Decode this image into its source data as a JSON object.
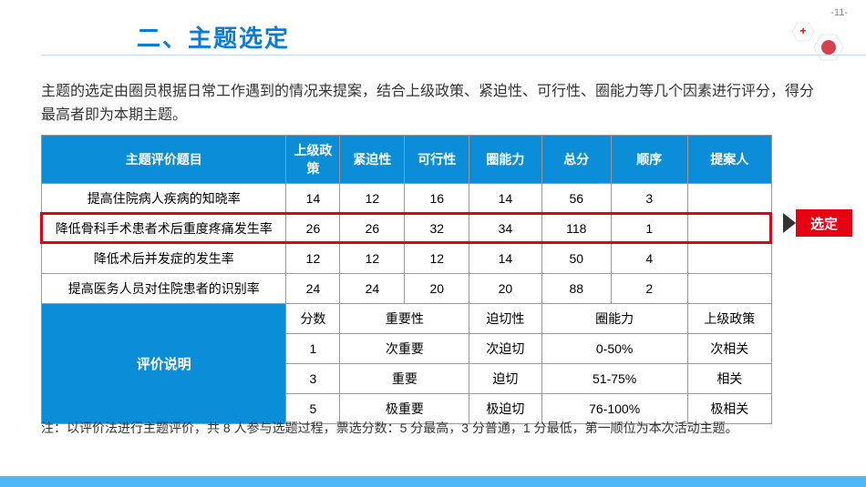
{
  "pageNumber": "-11-",
  "title": "二、主题选定",
  "intro": "主题的选定由圈员根据日常工作遇到的情况来提案，结合上级政策、紧迫性、可行性、圈能力等几个因素进行评分，得分最高者即为本期主题。",
  "headers": [
    "主题评价题目",
    "上级政策",
    "紧迫性",
    "可行性",
    "圈能力",
    "总分",
    "顺序",
    "提案人"
  ],
  "rows": [
    {
      "topic": "提高住院病人疾病的知晓率",
      "v": [
        "14",
        "12",
        "16",
        "14",
        "56",
        "3",
        ""
      ],
      "hl": false
    },
    {
      "topic": "降低骨科手术患者术后重度疼痛发生率",
      "v": [
        "26",
        "26",
        "32",
        "34",
        "118",
        "1",
        ""
      ],
      "hl": true
    },
    {
      "topic": "降低术后并发症的发生率",
      "v": [
        "12",
        "12",
        "12",
        "14",
        "50",
        "4",
        ""
      ],
      "hl": false
    },
    {
      "topic": "提高医务人员对住院患者的识别率",
      "v": [
        "24",
        "24",
        "20",
        "20",
        "88",
        "2",
        ""
      ],
      "hl": false
    }
  ],
  "evalLabel": "评价说明",
  "evalHeader": [
    "分数",
    "重要性",
    "迫切性",
    "圈能力",
    "上级政策"
  ],
  "evalRows": [
    [
      "1",
      "次重要",
      "次迫切",
      "0-50%",
      "次相关"
    ],
    [
      "3",
      "重要",
      "迫切",
      "51-75%",
      "相关"
    ],
    [
      "5",
      "极重要",
      "极迫切",
      "76-100%",
      "极相关"
    ]
  ],
  "selectedLabel": "选定",
  "footnote": "注：以评价法进行主题评价，共 8 人参与选题过程，票选分数：5 分最高，3 分普通，1 分最低，第一顺位为本次活动主题。",
  "colors": {
    "headerBg": "#0b8dd8",
    "titleColor": "#0b7cd6",
    "highlightBorder": "#e60012",
    "badgeBg": "#e60012",
    "bottomBar": "#4db8f5"
  }
}
